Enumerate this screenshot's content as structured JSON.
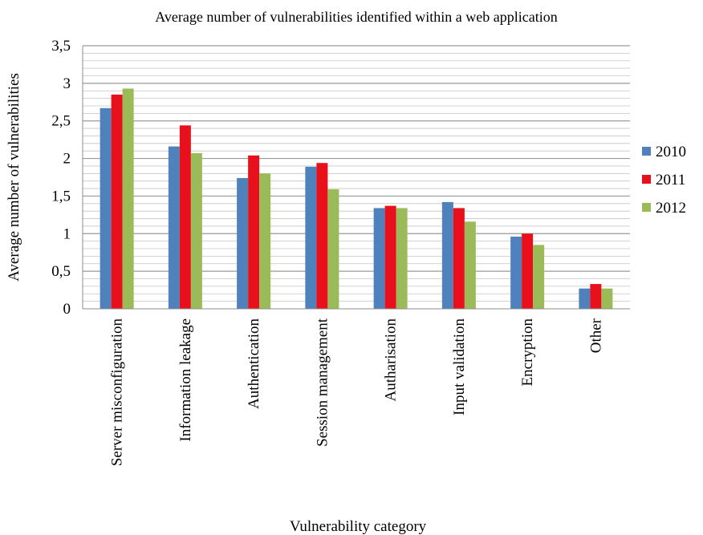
{
  "chart_data": {
    "type": "bar",
    "title": "Average number of vulnerabilities identified within a web application",
    "xlabel": "Vulnerability category",
    "ylabel": "Average number of vulnerabilities",
    "ylim": [
      0,
      3.5
    ],
    "y_ticks": [
      "0",
      "0,5",
      "1",
      "1,5",
      "2",
      "2,5",
      "3",
      "3,5"
    ],
    "grid": true,
    "legend_position": "right",
    "categories": [
      "Server misconfiguration",
      "Information leakage",
      "Authentication",
      "Session management",
      "Autharisation",
      "Input validation",
      "Encryption",
      "Other"
    ],
    "series": [
      {
        "name": "2010",
        "color": "#4f81bd",
        "values": [
          2.67,
          2.16,
          1.74,
          1.89,
          1.34,
          1.42,
          0.96,
          0.27
        ]
      },
      {
        "name": "2011",
        "color": "#e8101a",
        "values": [
          2.85,
          2.44,
          2.04,
          1.94,
          1.37,
          1.34,
          1.0,
          0.33
        ]
      },
      {
        "name": "2012",
        "color": "#9bbb59",
        "values": [
          2.93,
          2.07,
          1.8,
          1.59,
          1.34,
          1.16,
          0.85,
          0.27
        ]
      }
    ]
  }
}
